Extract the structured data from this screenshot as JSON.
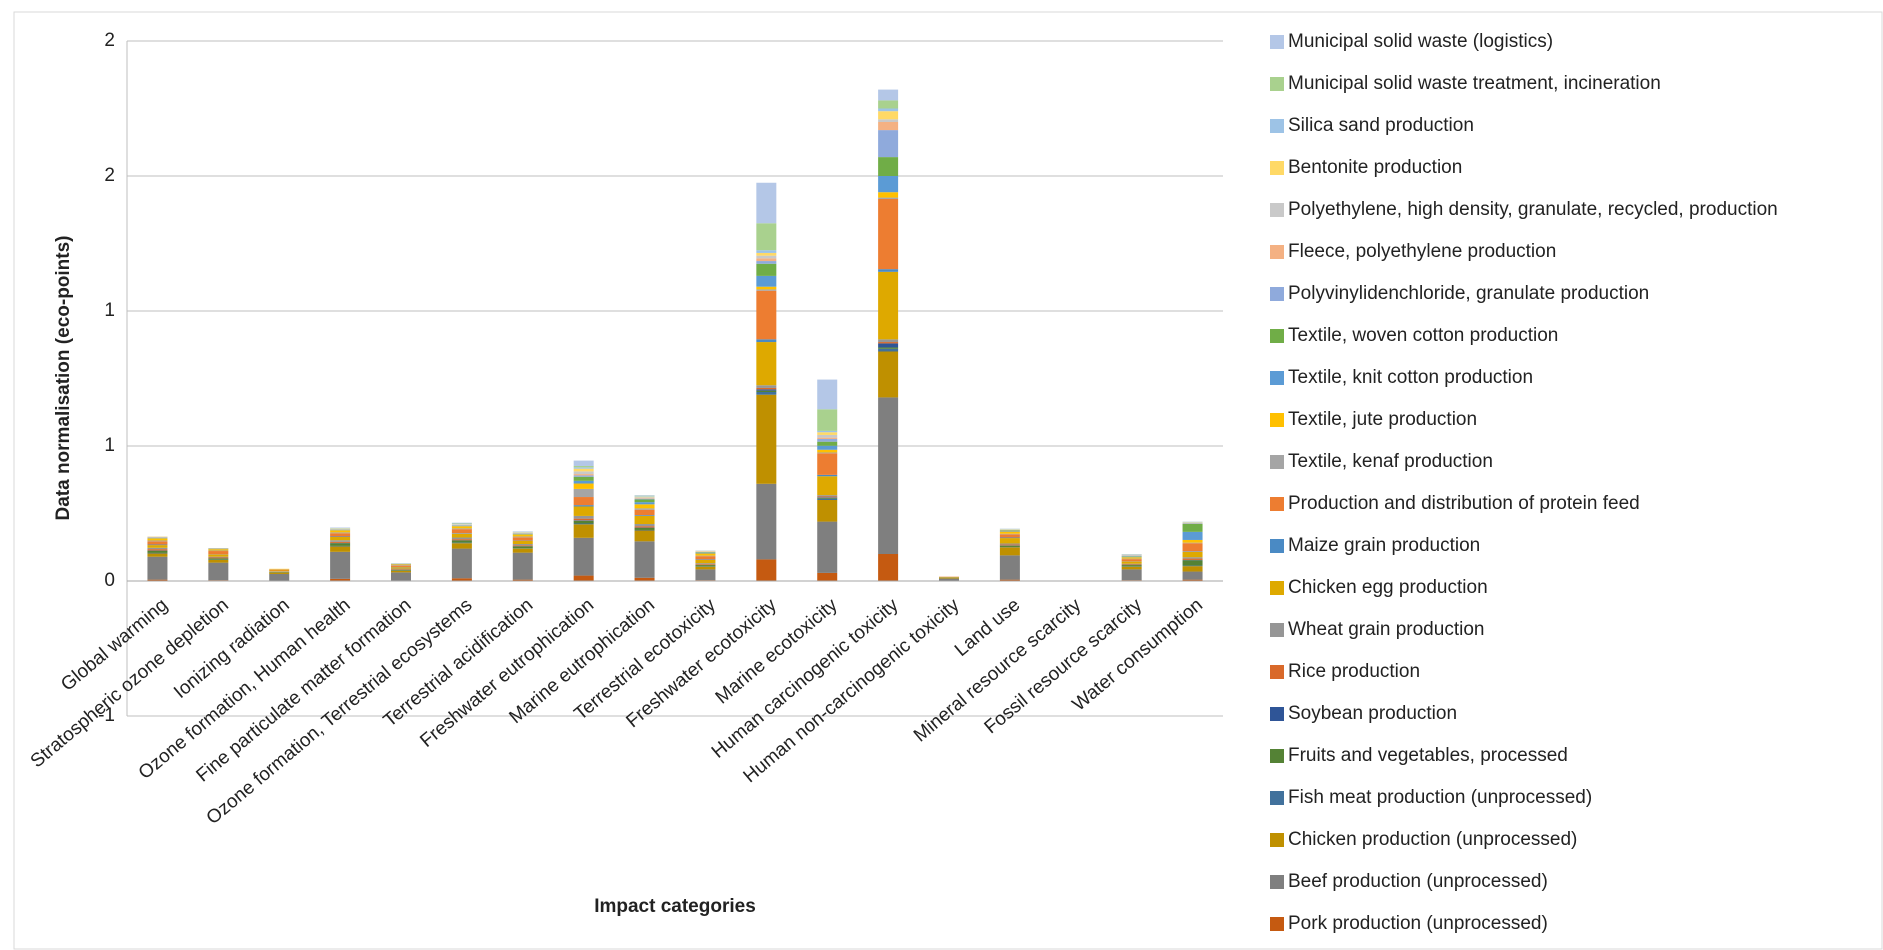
{
  "chart_data": {
    "type": "stacked_bar",
    "y_label": "Data normalisation (eco-points)",
    "x_label": "Impact categories",
    "categories": [
      "Global warming",
      "Stratospheric ozone depletion",
      "Ionizing radiation",
      "Ozone formation, Human health",
      "Fine particulate matter formation",
      "Ozone formation, Terrestrial ecosystems",
      "Terrestrial acidification",
      "Freshwater eutrophication",
      "Marine eutrophication",
      "Terrestrial ecotoxicity",
      "Freshwater ecotoxicity",
      "Marine ecotoxicity",
      "Human carcinogenic toxicity",
      "Human non-carcinogenic toxicity",
      "Land use",
      "Mineral resource scarcity",
      "Fossil resource scarcity",
      "Water consumption"
    ],
    "ylim": [
      -0.5,
      2
    ],
    "yticks": [
      2,
      {
        "value": 1.5,
        "label": "2"
      },
      1,
      {
        "value": 0.5,
        "label": "1"
      },
      0,
      {
        "value": -0.5,
        "label": "-1"
      }
    ],
    "grid": true,
    "legend": "right",
    "series": [
      {
        "name": "Pork production (unprocessed)",
        "color": "#c55a11",
        "values": [
          0.005,
          0.003,
          0.001,
          0.008,
          0.002,
          0.01,
          0.005,
          0.02,
          0.012,
          0.003,
          0.08,
          0.03,
          0.1,
          0.001,
          0.005,
          0,
          0.003,
          0.005
        ]
      },
      {
        "name": "Beef production (unprocessed)",
        "color": "#7f7f7f",
        "values": [
          0.085,
          0.065,
          0.025,
          0.1,
          0.03,
          0.11,
          0.1,
          0.14,
          0.135,
          0.04,
          0.28,
          0.19,
          0.58,
          0.008,
          0.09,
          0.001,
          0.04,
          0.03
        ]
      },
      {
        "name": "Chicken production (unprocessed)",
        "color": "#bf9000",
        "values": [
          0.012,
          0.01,
          0.005,
          0.02,
          0.006,
          0.02,
          0.015,
          0.05,
          0.04,
          0.01,
          0.33,
          0.08,
          0.17,
          0.002,
          0.03,
          0,
          0.01,
          0.02
        ]
      },
      {
        "name": "Fish meat production (unprocessed)",
        "color": "#41719c",
        "values": [
          0.002,
          0.001,
          0,
          0.002,
          0.001,
          0.002,
          0.001,
          0.003,
          0.002,
          0.001,
          0.01,
          0.005,
          0.01,
          0,
          0.001,
          0,
          0.001,
          0.002
        ]
      },
      {
        "name": "Fruits and vegetables, processed",
        "color": "#548235",
        "values": [
          0.008,
          0.005,
          0.002,
          0.01,
          0.003,
          0.008,
          0.007,
          0.01,
          0.008,
          0.005,
          0.005,
          0.003,
          0.005,
          0.001,
          0.005,
          0,
          0.005,
          0.02
        ]
      },
      {
        "name": "Soybean production",
        "color": "#2f5597",
        "values": [
          0.001,
          0,
          0,
          0.001,
          0,
          0.001,
          0.001,
          0.002,
          0.001,
          0,
          0.005,
          0.002,
          0.015,
          0,
          0.001,
          0,
          0,
          0.001
        ]
      },
      {
        "name": "Rice production",
        "color": "#d9692a",
        "values": [
          0.005,
          0.003,
          0.001,
          0.004,
          0.002,
          0.004,
          0.003,
          0.006,
          0.005,
          0.003,
          0.005,
          0.003,
          0.005,
          0,
          0.003,
          0,
          0.002,
          0.005
        ]
      },
      {
        "name": "Wheat grain production",
        "color": "#969696",
        "values": [
          0.005,
          0.003,
          0.002,
          0.006,
          0.002,
          0.006,
          0.005,
          0.01,
          0.008,
          0.004,
          0.01,
          0.005,
          0.01,
          0.001,
          0.004,
          0,
          0.003,
          0.005
        ]
      },
      {
        "name": "Chicken egg production",
        "color": "#dea900",
        "values": [
          0.01,
          0.008,
          0.003,
          0.012,
          0.005,
          0.014,
          0.012,
          0.035,
          0.03,
          0.012,
          0.16,
          0.07,
          0.25,
          0.002,
          0.02,
          0,
          0.008,
          0.02
        ]
      },
      {
        "name": "Maize grain production",
        "color": "#4a8ac4",
        "values": [
          0.002,
          0.001,
          0,
          0.002,
          0.001,
          0.002,
          0.001,
          0.005,
          0.003,
          0.002,
          0.01,
          0.005,
          0.01,
          0,
          0.002,
          0,
          0.001,
          0.002
        ]
      },
      {
        "name": "Production and distribution of protein feed",
        "color": "#ed7d31",
        "values": [
          0.012,
          0.012,
          0.003,
          0.012,
          0.005,
          0.015,
          0.012,
          0.03,
          0.02,
          0.012,
          0.18,
          0.08,
          0.26,
          0.001,
          0.012,
          0,
          0.008,
          0.03
        ]
      },
      {
        "name": "Textile, kenaf production",
        "color": "#a5a5a5",
        "values": [
          0.003,
          0.002,
          0.001,
          0.003,
          0.002,
          0.003,
          0.003,
          0.03,
          0.005,
          0.002,
          0.005,
          0.003,
          0.005,
          0,
          0.002,
          0,
          0.002,
          0.002
        ]
      },
      {
        "name": "Textile, jute production",
        "color": "#ffc000",
        "values": [
          0.008,
          0.005,
          0.002,
          0.008,
          0.003,
          0.008,
          0.007,
          0.02,
          0.015,
          0.008,
          0.01,
          0.01,
          0.02,
          0,
          0.008,
          0,
          0.005,
          0.01
        ]
      },
      {
        "name": "Textile, knit cotton production",
        "color": "#5b9bd5",
        "values": [
          0.001,
          0.001,
          0,
          0.001,
          0.001,
          0.001,
          0.001,
          0.01,
          0.008,
          0.002,
          0.04,
          0.015,
          0.06,
          0,
          0.002,
          0,
          0.002,
          0.03
        ]
      },
      {
        "name": "Textile, woven cotton production",
        "color": "#70ad47",
        "values": [
          0.001,
          0.001,
          0,
          0.001,
          0.001,
          0.001,
          0.002,
          0.015,
          0.01,
          0.002,
          0.045,
          0.015,
          0.07,
          0,
          0.002,
          0,
          0.002,
          0.03
        ]
      },
      {
        "name": "Polyvinylidenchloride, granulate  production",
        "color": "#8faadc",
        "values": [
          0.002,
          0.001,
          0,
          0.001,
          0.001,
          0.002,
          0.002,
          0.005,
          0.003,
          0.002,
          0.01,
          0.01,
          0.1,
          0,
          0.001,
          0,
          0.002,
          0.002
        ]
      },
      {
        "name": "Fleece, polyethylene production",
        "color": "#f4b183",
        "values": [
          0.001,
          0.001,
          0,
          0.001,
          0,
          0.001,
          0.001,
          0.005,
          0.002,
          0.001,
          0.01,
          0.005,
          0.03,
          0,
          0.001,
          0,
          0.001,
          0.001
        ]
      },
      {
        "name": "Polyethylene, high density, granulate, recycled, production",
        "color": "#c9c9c9",
        "values": [
          0.001,
          0,
          0,
          0.001,
          0,
          0.001,
          0.001,
          0.01,
          0.003,
          0.001,
          0.01,
          0.01,
          0.01,
          0,
          0.001,
          0,
          0.001,
          0.001
        ]
      },
      {
        "name": "Bentonite production",
        "color": "#ffd966",
        "values": [
          0.001,
          0,
          0,
          0.001,
          0,
          0.001,
          0.001,
          0.01,
          0.002,
          0.001,
          0.01,
          0.01,
          0.03,
          0,
          0.001,
          0,
          0.001,
          0.001
        ]
      },
      {
        "name": "Silica sand production",
        "color": "#9dc3e6",
        "values": [
          0,
          0,
          0,
          0.001,
          0,
          0.001,
          0.001,
          0.005,
          0.002,
          0,
          0.01,
          0.005,
          0.01,
          0,
          0.001,
          0,
          0.001,
          0.001
        ]
      },
      {
        "name": "Municipal solid waste treatment, incineration",
        "color": "#a9d18e",
        "values": [
          0,
          0,
          0,
          0.001,
          0,
          0.002,
          0.001,
          0.005,
          0.002,
          0.001,
          0.1,
          0.08,
          0.03,
          0,
          0.001,
          0,
          0.001,
          0.001
        ]
      },
      {
        "name": "Municipal solid waste (logistics)",
        "color": "#b4c7e7",
        "values": [
          0,
          0,
          0,
          0.002,
          0,
          0.003,
          0.002,
          0.02,
          0.002,
          0.001,
          0.15,
          0.11,
          0.04,
          0,
          0.001,
          0,
          0.001,
          0.001
        ]
      }
    ]
  }
}
